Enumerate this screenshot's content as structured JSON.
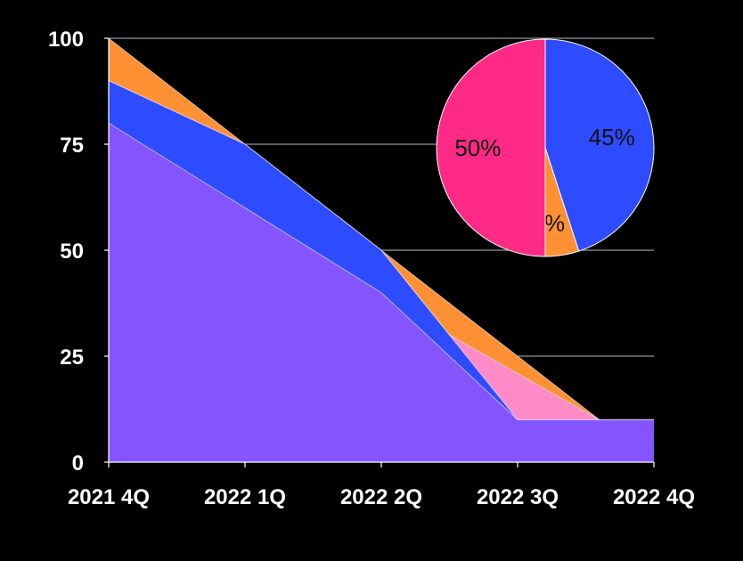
{
  "chart_data": [
    {
      "type": "area",
      "categories": [
        "2021 4Q",
        "2022 1Q",
        "2022 2Q",
        "2022 3Q",
        "2022 4Q"
      ],
      "yticks": [
        "0",
        "25",
        "50",
        "75",
        "100"
      ],
      "ylim": [
        0,
        100
      ],
      "grid": true,
      "note": "overlapping areas; each boundary given as [x_position_in_categories, value]",
      "series": [
        {
          "color": "#FF9033",
          "points": [
            [
              0,
              100
            ],
            [
              1,
              75
            ],
            [
              2,
              50
            ],
            [
              3.6,
              10
            ],
            [
              4,
              10
            ]
          ]
        },
        {
          "color": "#FF8AC8",
          "points": [
            [
              0,
              90
            ],
            [
              1,
              75
            ],
            [
              2,
              50
            ],
            [
              2.5,
              30
            ],
            [
              3.6,
              10
            ],
            [
              4,
              10
            ]
          ]
        },
        {
          "color": "#2D4BFF",
          "points": [
            [
              0,
              90
            ],
            [
              1,
              75
            ],
            [
              2,
              50
            ],
            [
              3,
              10
            ],
            [
              4,
              10
            ]
          ]
        },
        {
          "color": "#8455FF",
          "points": [
            [
              0,
              80
            ],
            [
              1,
              60
            ],
            [
              2,
              40
            ],
            [
              3,
              10
            ],
            [
              4,
              10
            ]
          ]
        }
      ]
    },
    {
      "type": "pie",
      "slices": [
        {
          "label": "45%",
          "value": 45,
          "color": "#2D4BFF"
        },
        {
          "label": "5%",
          "value": 5,
          "color": "#FF9033"
        },
        {
          "label": "50%",
          "value": 50,
          "color": "#FF2A85"
        }
      ]
    }
  ]
}
